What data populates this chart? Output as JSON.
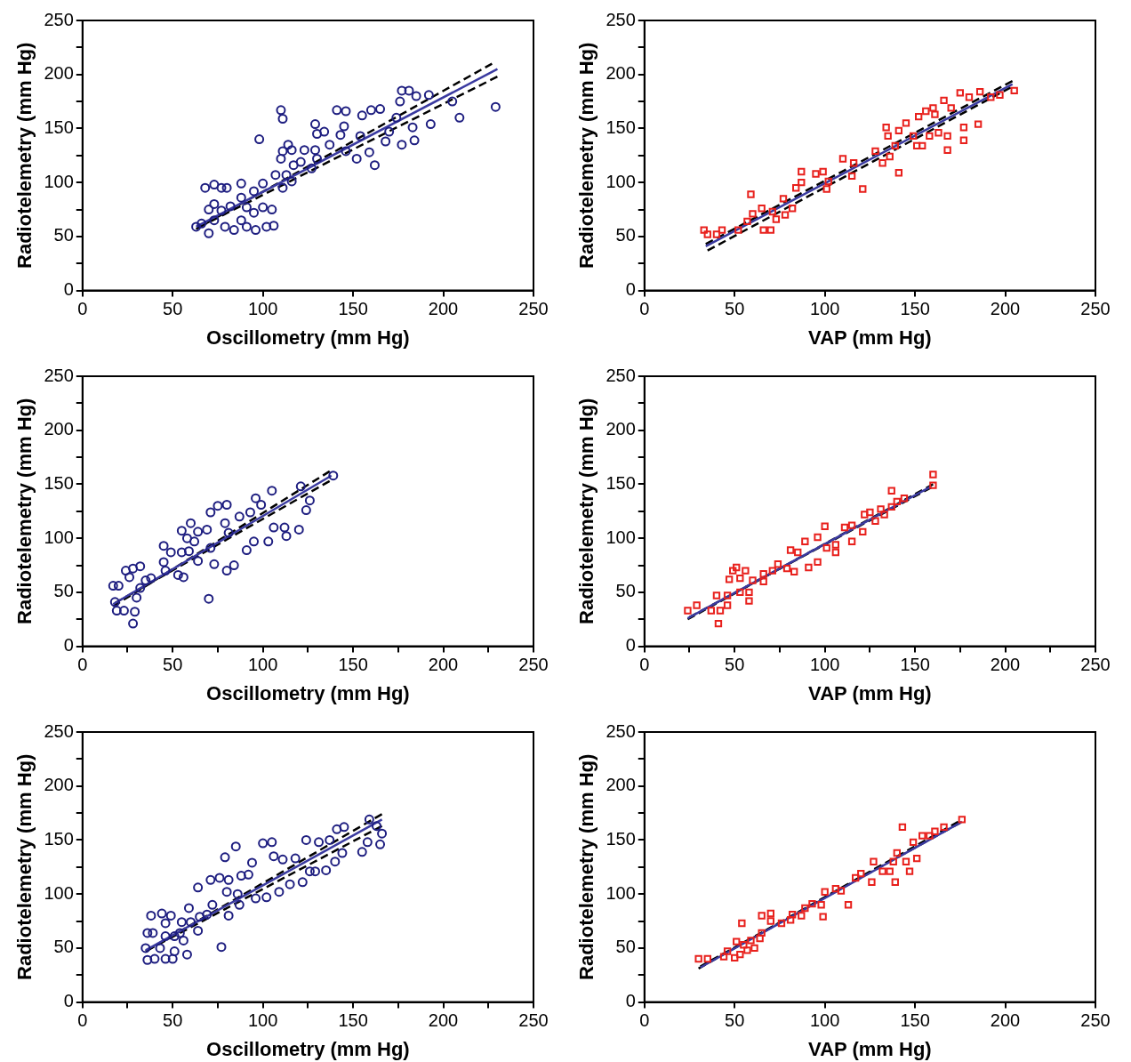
{
  "chart_data": [
    {
      "type": "scatter",
      "xlabel": "Oscillometry (mm Hg)",
      "ylabel": "Radiotelemetry (mm Hg)",
      "xlim": [
        0,
        250
      ],
      "ylim": [
        0,
        250
      ],
      "xticks": [
        0,
        50,
        100,
        150,
        200,
        250
      ],
      "yticks": [
        0,
        {
          "value": 25,
          "label": null
        },
        50,
        {
          "value": 75,
          "label": null
        },
        100,
        {
          "value": 125,
          "label": null
        },
        150,
        {
          "value": 175,
          "label": null
        },
        200,
        {
          "value": 225,
          "label": null
        },
        250
      ],
      "series": [
        {
          "type": "scatter",
          "color": "#1e1e80",
          "marker": "circle",
          "x": [
            68,
            73,
            77,
            80,
            88,
            70,
            73,
            77,
            82,
            88,
            91,
            95,
            100,
            105,
            106,
            102,
            96,
            91,
            84,
            79,
            70,
            63,
            66,
            73,
            88,
            95,
            100,
            107,
            111,
            113,
            116,
            117,
            121,
            127,
            130,
            110,
            111,
            116,
            123,
            129,
            114,
            98,
            111,
            110,
            129,
            130,
            134,
            137,
            141,
            146,
            145,
            143,
            146,
            152,
            154,
            155,
            160,
            165,
            159,
            162,
            170,
            174,
            176,
            177,
            181,
            177,
            183,
            185,
            192,
            193,
            205,
            209,
            229,
            184,
            168
          ],
          "values": [
            95,
            98,
            95,
            95,
            99,
            75,
            80,
            74,
            78,
            86,
            77,
            72,
            77,
            75,
            60,
            59,
            56,
            59,
            56,
            59,
            53,
            59,
            62,
            65,
            65,
            92,
            99,
            107,
            95,
            107,
            101,
            116,
            119,
            113,
            122,
            122,
            129,
            130,
            130,
            130,
            135,
            140,
            159,
            167,
            154,
            145,
            147,
            135,
            167,
            166,
            152,
            144,
            129,
            122,
            143,
            162,
            167,
            168,
            128,
            116,
            147,
            160,
            175,
            185,
            185,
            135,
            151,
            180,
            181,
            154,
            175,
            160,
            170,
            139,
            138
          ]
        },
        {
          "type": "line",
          "color": "#3a3aa0",
          "marker": "none",
          "line_style": "solid",
          "x": [
            63,
            230
          ],
          "values": [
            59,
            205
          ]
        },
        {
          "type": "line",
          "color": "#000000",
          "marker": "none",
          "line_style": "dashed",
          "x": [
            63,
            227
          ],
          "values": [
            57,
            210
          ]
        },
        {
          "type": "line",
          "color": "#000000",
          "marker": "none",
          "line_style": "dashed",
          "x": [
            65,
            230
          ],
          "values": [
            59,
            198
          ]
        }
      ]
    },
    {
      "type": "scatter",
      "xlabel": "VAP (mm Hg)",
      "ylabel": "Radiotelemetry (mm Hg)",
      "xlim": [
        0,
        250
      ],
      "ylim": [
        0,
        250
      ],
      "xticks": [
        0,
        50,
        100,
        150,
        200,
        250
      ],
      "yticks": [
        0,
        {
          "value": 25,
          "label": null
        },
        50,
        {
          "value": 75,
          "label": null
        },
        100,
        {
          "value": 125,
          "label": null
        },
        150,
        {
          "value": 175,
          "label": null
        },
        200,
        {
          "value": 225,
          "label": null
        },
        250
      ],
      "series": [
        {
          "type": "scatter",
          "color": "#e8201c",
          "marker": "square",
          "x": [
            33,
            35,
            40,
            43,
            52,
            59,
            57,
            60,
            65,
            66,
            70,
            71,
            73,
            77,
            78,
            82,
            84,
            87,
            87,
            95,
            99,
            101,
            102,
            110,
            115,
            116,
            121,
            128,
            132,
            136,
            139,
            141,
            134,
            135,
            141,
            145,
            151,
            154,
            149,
            152,
            156,
            160,
            161,
            158,
            163,
            168,
            168,
            166,
            170,
            175,
            177,
            177,
            180,
            185,
            186,
            192,
            197,
            205
          ],
          "values": [
            56,
            52,
            52,
            56,
            56,
            89,
            64,
            71,
            76,
            56,
            56,
            73,
            66,
            85,
            70,
            76,
            95,
            100,
            110,
            108,
            110,
            94,
            101,
            122,
            106,
            118,
            94,
            129,
            118,
            124,
            134,
            109,
            151,
            143,
            148,
            155,
            134,
            134,
            143,
            161,
            166,
            169,
            163,
            143,
            146,
            143,
            130,
            176,
            169,
            183,
            151,
            139,
            179,
            154,
            184,
            179,
            181,
            185
          ]
        },
        {
          "type": "line",
          "color": "#3a3aa0",
          "marker": "none",
          "line_style": "solid",
          "x": [
            34,
            204
          ],
          "values": [
            41,
            191
          ]
        },
        {
          "type": "line",
          "color": "#000000",
          "marker": "none",
          "line_style": "dashed",
          "x": [
            35,
            203
          ],
          "values": [
            37,
            188
          ]
        },
        {
          "type": "line",
          "color": "#000000",
          "marker": "none",
          "line_style": "dashed",
          "x": [
            34,
            204
          ],
          "values": [
            43,
            194
          ]
        }
      ]
    },
    {
      "type": "scatter",
      "xlabel": "Oscillometry (mm Hg)",
      "ylabel": "Radiotelemetry (mm Hg)",
      "xlim": [
        0,
        250
      ],
      "ylim": [
        0,
        250
      ],
      "xticks": [
        0,
        {
          "value": 25,
          "label": null
        },
        50,
        {
          "value": 75,
          "label": null
        },
        100,
        {
          "value": 125,
          "label": null
        },
        150,
        {
          "value": 175,
          "label": null
        },
        200,
        {
          "value": 225,
          "label": null
        },
        250
      ],
      "yticks": [
        0,
        {
          "value": 25,
          "label": null
        },
        50,
        {
          "value": 75,
          "label": null
        },
        100,
        {
          "value": 125,
          "label": null
        },
        150,
        {
          "value": 175,
          "label": null
        },
        200,
        {
          "value": 225,
          "label": null
        },
        250
      ],
      "series": [
        {
          "type": "scatter",
          "color": "#1e1e80",
          "marker": "circle",
          "x": [
            17,
            20,
            18,
            19,
            23,
            28,
            29,
            30,
            32,
            24,
            28,
            32,
            26,
            35,
            38,
            45,
            45,
            49,
            46,
            53,
            56,
            55,
            55,
            58,
            60,
            62,
            64,
            59,
            64,
            69,
            70,
            71,
            75,
            71,
            73,
            80,
            80,
            84,
            79,
            81,
            87,
            91,
            93,
            96,
            95,
            99,
            103,
            105,
            106,
            113,
            112,
            120,
            121,
            124,
            126,
            139
          ],
          "values": [
            56,
            56,
            41,
            33,
            33,
            21,
            32,
            45,
            54,
            70,
            72,
            74,
            64,
            61,
            63,
            78,
            93,
            87,
            70,
            66,
            64,
            87,
            107,
            100,
            114,
            97,
            106,
            88,
            79,
            108,
            44,
            124,
            130,
            91,
            76,
            70,
            131,
            75,
            114,
            105,
            120,
            89,
            124,
            137,
            97,
            131,
            97,
            144,
            110,
            102,
            110,
            108,
            148,
            126,
            135,
            158
          ]
        },
        {
          "type": "line",
          "color": "#3a3aa0",
          "marker": "none",
          "line_style": "solid",
          "x": [
            17,
            138
          ],
          "values": [
            39,
            158
          ]
        },
        {
          "type": "line",
          "color": "#000000",
          "marker": "none",
          "line_style": "dashed",
          "x": [
            17,
            137
          ],
          "values": [
            37,
            162
          ]
        },
        {
          "type": "line",
          "color": "#000000",
          "marker": "none",
          "line_style": "dashed",
          "x": [
            18,
            137
          ],
          "values": [
            40,
            153
          ]
        }
      ]
    },
    {
      "type": "scatter",
      "xlabel": "VAP (mm Hg)",
      "ylabel": "Radiotelemetry (mm Hg)",
      "xlim": [
        0,
        250
      ],
      "ylim": [
        0,
        250
      ],
      "xticks": [
        0,
        {
          "value": 25,
          "label": null
        },
        50,
        {
          "value": 75,
          "label": null
        },
        100,
        {
          "value": 125,
          "label": null
        },
        150,
        {
          "value": 175,
          "label": null
        },
        200,
        {
          "value": 225,
          "label": null
        },
        250
      ],
      "yticks": [
        0,
        {
          "value": 25,
          "label": null
        },
        50,
        {
          "value": 75,
          "label": null
        },
        100,
        {
          "value": 125,
          "label": null
        },
        150,
        {
          "value": 175,
          "label": null
        },
        200,
        {
          "value": 225,
          "label": null
        },
        250
      ],
      "series": [
        {
          "type": "scatter",
          "color": "#e8201c",
          "marker": "square",
          "x": [
            24,
            29,
            37,
            41,
            42,
            40,
            46,
            46,
            47,
            51,
            53,
            49,
            56,
            53,
            58,
            58,
            60,
            66,
            66,
            71,
            74,
            79,
            83,
            81,
            85,
            89,
            91,
            96,
            96,
            100,
            101,
            106,
            106,
            111,
            115,
            115,
            121,
            122,
            125,
            128,
            131,
            133,
            137,
            137,
            140,
            144,
            160,
            160
          ],
          "values": [
            33,
            38,
            33,
            21,
            33,
            47,
            47,
            38,
            62,
            73,
            63,
            70,
            70,
            50,
            42,
            50,
            61,
            67,
            60,
            70,
            76,
            72,
            69,
            89,
            87,
            97,
            73,
            78,
            101,
            111,
            91,
            94,
            87,
            110,
            112,
            97,
            106,
            122,
            124,
            116,
            127,
            122,
            144,
            129,
            134,
            137,
            159,
            149
          ]
        },
        {
          "type": "line",
          "color": "#3a3aa0",
          "marker": "none",
          "line_style": "solid",
          "x": [
            24,
            159
          ],
          "values": [
            26,
            148
          ]
        },
        {
          "type": "line",
          "color": "#000000",
          "marker": "none",
          "line_style": "dashed",
          "x": [
            24,
            160
          ],
          "values": [
            25,
            150
          ]
        },
        {
          "type": "line",
          "color": "#000000",
          "marker": "none",
          "line_style": "dashed",
          "x": [
            25,
            159
          ],
          "values": [
            27,
            147
          ]
        }
      ]
    },
    {
      "type": "scatter",
      "xlabel": "Oscillometry (mm Hg)",
      "ylabel": "Radiotelemetry (mm Hg)",
      "xlim": [
        0,
        250
      ],
      "ylim": [
        0,
        250
      ],
      "xticks": [
        0,
        {
          "value": 25,
          "label": null
        },
        50,
        {
          "value": 75,
          "label": null
        },
        100,
        {
          "value": 125,
          "label": null
        },
        150,
        {
          "value": 175,
          "label": null
        },
        200,
        {
          "value": 225,
          "label": null
        },
        250
      ],
      "yticks": [
        0,
        {
          "value": 25,
          "label": null
        },
        50,
        {
          "value": 75,
          "label": null
        },
        100,
        {
          "value": 125,
          "label": null
        },
        150,
        {
          "value": 175,
          "label": null
        },
        200,
        {
          "value": 225,
          "label": null
        },
        250
      ],
      "series": [
        {
          "type": "scatter",
          "color": "#1e1e80",
          "marker": "circle",
          "x": [
            36,
            40,
            46,
            50,
            35,
            43,
            51,
            58,
            36,
            39,
            46,
            51,
            54,
            56,
            38,
            44,
            49,
            46,
            55,
            60,
            59,
            64,
            64,
            65,
            69,
            71,
            72,
            76,
            77,
            79,
            80,
            81,
            81,
            85,
            86,
            87,
            88,
            92,
            94,
            96,
            100,
            105,
            102,
            106,
            109,
            111,
            115,
            118,
            122,
            124,
            126,
            131,
            129,
            135,
            137,
            140,
            144,
            141,
            145,
            155,
            159,
            158,
            165,
            166,
            163
          ],
          "values": [
            39,
            40,
            40,
            40,
            50,
            50,
            47,
            44,
            64,
            64,
            61,
            61,
            64,
            57,
            80,
            82,
            80,
            73,
            74,
            74,
            87,
            66,
            106,
            79,
            81,
            113,
            90,
            115,
            51,
            134,
            102,
            80,
            113,
            144,
            100,
            90,
            117,
            118,
            129,
            96,
            147,
            148,
            97,
            135,
            102,
            132,
            109,
            133,
            111,
            150,
            121,
            148,
            121,
            122,
            150,
            130,
            138,
            160,
            162,
            139,
            169,
            148,
            146,
            156,
            163
          ]
        },
        {
          "type": "line",
          "color": "#3a3aa0",
          "marker": "none",
          "line_style": "solid",
          "x": [
            35,
            166
          ],
          "values": [
            48,
            169
          ]
        },
        {
          "type": "line",
          "color": "#000000",
          "marker": "none",
          "line_style": "dashed",
          "x": [
            35,
            166
          ],
          "values": [
            47,
            174
          ]
        },
        {
          "type": "line",
          "color": "#000000",
          "marker": "none",
          "line_style": "dashed",
          "x": [
            36,
            166
          ],
          "values": [
            48,
            163
          ]
        }
      ]
    },
    {
      "type": "scatter",
      "xlabel": "VAP (mm Hg)",
      "ylabel": "Radiotelemetry (mm Hg)",
      "xlim": [
        0,
        250
      ],
      "ylim": [
        0,
        250
      ],
      "xticks": [
        0,
        50,
        100,
        150,
        200,
        250
      ],
      "yticks": [
        0,
        {
          "value": 25,
          "label": null
        },
        50,
        {
          "value": 75,
          "label": null
        },
        100,
        {
          "value": 125,
          "label": null
        },
        150,
        {
          "value": 175,
          "label": null
        },
        200,
        {
          "value": 225,
          "label": null
        },
        250
      ],
      "series": [
        {
          "type": "scatter",
          "color": "#e8201c",
          "marker": "square",
          "x": [
            30,
            35,
            44,
            46,
            50,
            53,
            51,
            55,
            57,
            59,
            61,
            64,
            65,
            54,
            65,
            70,
            70,
            76,
            81,
            82,
            87,
            89,
            93,
            98,
            99,
            100,
            106,
            109,
            113,
            117,
            120,
            126,
            127,
            132,
            136,
            138,
            139,
            140,
            143,
            145,
            147,
            149,
            151,
            154,
            158,
            161,
            166,
            176
          ],
          "values": [
            40,
            40,
            42,
            47,
            41,
            44,
            56,
            53,
            48,
            57,
            50,
            59,
            64,
            73,
            80,
            82,
            75,
            73,
            76,
            81,
            80,
            87,
            91,
            90,
            79,
            102,
            105,
            103,
            90,
            115,
            119,
            111,
            130,
            121,
            121,
            130,
            111,
            138,
            162,
            130,
            121,
            148,
            133,
            154,
            154,
            158,
            162,
            169
          ]
        },
        {
          "type": "line",
          "color": "#3a3aa0",
          "marker": "none",
          "line_style": "solid",
          "x": [
            31,
            176
          ],
          "values": [
            32,
            167
          ]
        },
        {
          "type": "line",
          "color": "#000000",
          "marker": "none",
          "line_style": "dashed",
          "x": [
            30,
            174
          ],
          "values": [
            31,
            167
          ]
        },
        {
          "type": "line",
          "color": "#000000",
          "marker": "none",
          "line_style": "dashed",
          "x": [
            31,
            175
          ],
          "values": [
            33,
            166
          ]
        }
      ]
    }
  ]
}
